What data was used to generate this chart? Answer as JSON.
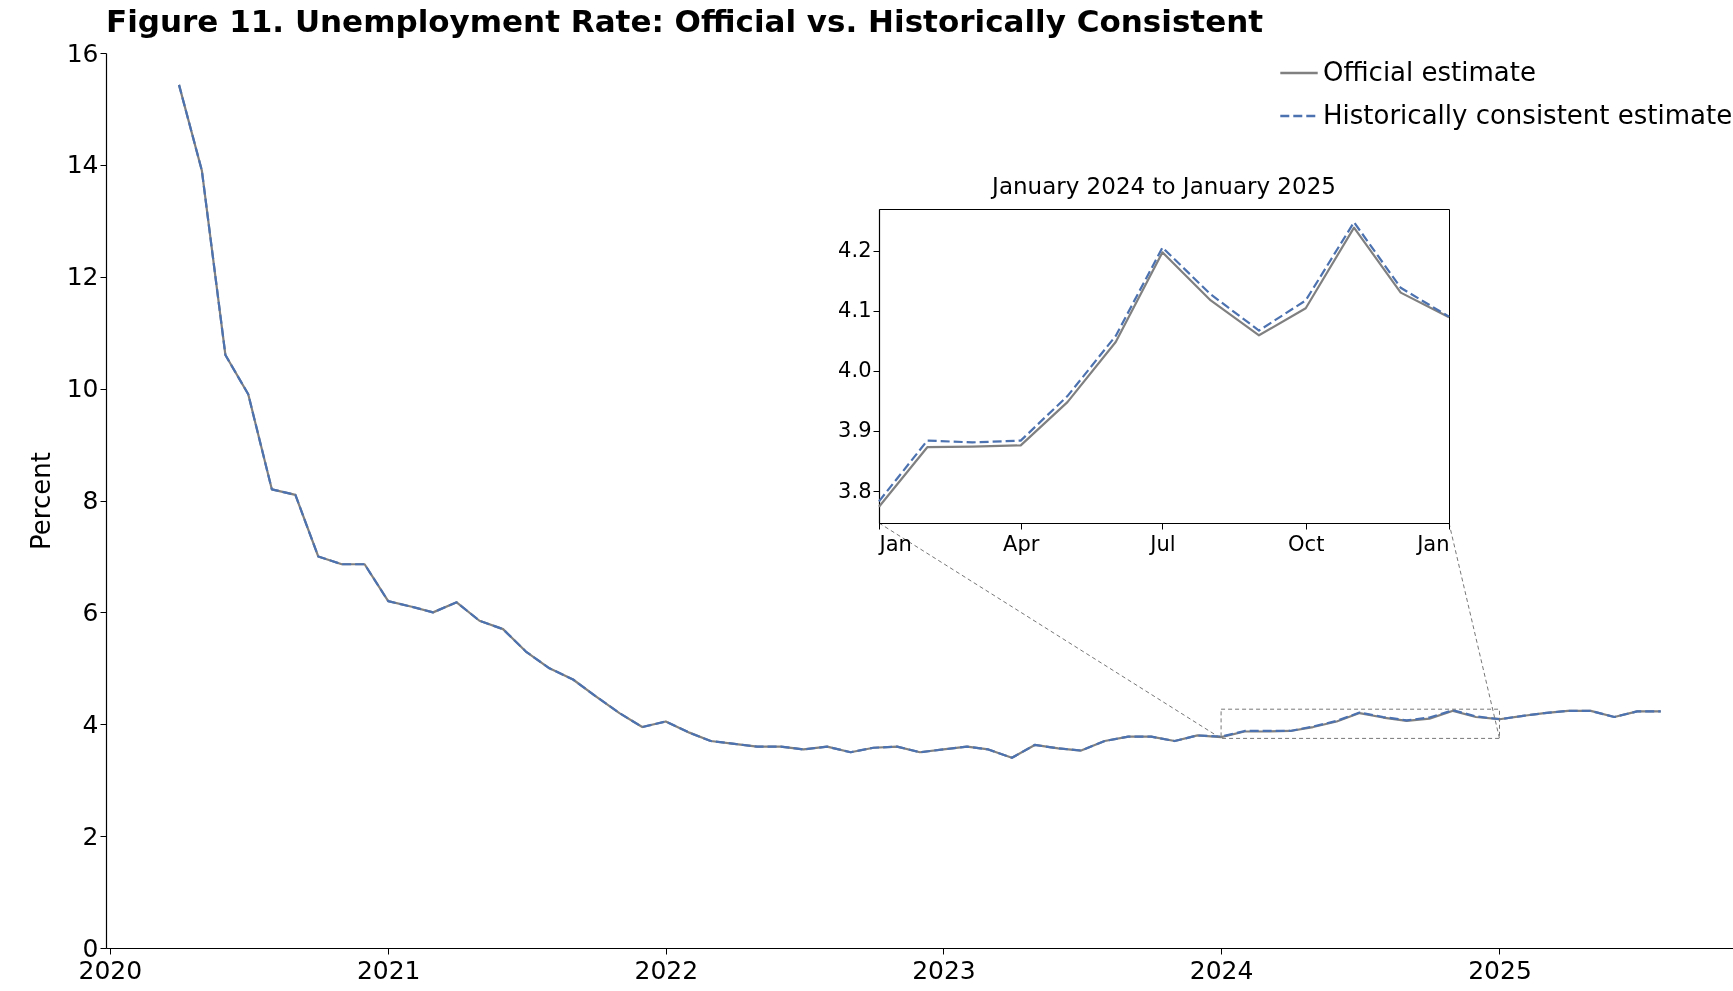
{
  "chart_data": [
    {
      "type": "line",
      "title": "Figure 11. Unemployment Rate: Official vs. Historically Consistent",
      "ylabel": "Percent",
      "x": [
        "2020-04",
        "2020-05",
        "2020-06",
        "2020-07",
        "2020-08",
        "2020-09",
        "2020-10",
        "2020-11",
        "2020-12",
        "2021-01",
        "2021-02",
        "2021-03",
        "2021-04",
        "2021-05",
        "2021-06",
        "2021-07",
        "2021-08",
        "2021-09",
        "2021-10",
        "2021-11",
        "2021-12",
        "2022-01",
        "2022-02",
        "2022-03",
        "2022-04",
        "2022-05",
        "2022-06",
        "2022-07",
        "2022-08",
        "2022-09",
        "2022-10",
        "2022-11",
        "2022-12",
        "2023-01",
        "2023-02",
        "2023-03",
        "2023-04",
        "2023-05",
        "2023-06",
        "2023-07",
        "2023-08",
        "2023-09",
        "2023-10",
        "2023-11",
        "2023-12",
        "2024-01",
        "2024-02",
        "2024-03",
        "2024-04",
        "2024-05",
        "2024-06",
        "2024-07",
        "2024-08",
        "2024-09",
        "2024-10",
        "2024-11",
        "2024-12",
        "2025-01",
        "2025-02",
        "2025-03",
        "2025-04",
        "2025-05",
        "2025-06",
        "2025-07",
        "2025-08"
      ],
      "series": [
        {
          "name": "Official estimate",
          "color": "#808080",
          "line_style": "solid",
          "values": [
            15.43,
            13.9,
            10.6,
            9.9,
            8.2,
            8.1,
            7.0,
            6.86,
            6.86,
            6.2,
            6.1,
            6.0,
            6.18,
            5.85,
            5.7,
            5.3,
            5.0,
            4.8,
            4.5,
            4.2,
            3.95,
            4.05,
            3.85,
            3.7,
            3.65,
            3.6,
            3.6,
            3.55,
            3.6,
            3.5,
            3.58,
            3.6,
            3.5,
            3.55,
            3.6,
            3.55,
            3.4,
            3.63,
            3.57,
            3.53,
            3.7,
            3.78,
            3.78,
            3.7,
            3.8,
            3.77,
            3.87,
            3.87,
            3.88,
            3.95,
            4.05,
            4.2,
            4.12,
            4.06,
            4.1,
            4.24,
            4.13,
            4.09,
            4.15,
            4.2,
            4.24,
            4.24,
            4.13,
            4.23,
            4.23
          ]
        },
        {
          "name": "Historically consistent estimate",
          "color": "#4c72b0",
          "line_style": "dashed",
          "values": [
            15.43,
            13.9,
            10.6,
            9.9,
            8.2,
            8.1,
            7.0,
            6.86,
            6.86,
            6.2,
            6.1,
            6.0,
            6.18,
            5.85,
            5.7,
            5.3,
            5.0,
            4.8,
            4.5,
            4.2,
            3.95,
            4.05,
            3.85,
            3.7,
            3.65,
            3.6,
            3.6,
            3.55,
            3.6,
            3.5,
            3.58,
            3.6,
            3.5,
            3.55,
            3.6,
            3.55,
            3.4,
            3.63,
            3.57,
            3.53,
            3.7,
            3.78,
            3.78,
            3.7,
            3.8,
            3.78,
            3.88,
            3.88,
            3.88,
            3.96,
            4.06,
            4.21,
            4.13,
            4.07,
            4.12,
            4.25,
            4.14,
            4.09,
            4.15,
            4.2,
            4.24,
            4.24,
            4.13,
            4.23,
            4.23
          ]
        }
      ],
      "xlim": [
        "2019-12-27",
        "2025-11-04"
      ],
      "xticks": [
        "2020",
        "2021",
        "2022",
        "2023",
        "2024",
        "2025"
      ],
      "ylim": [
        0,
        16
      ],
      "yticks": [
        0,
        2,
        4,
        6,
        8,
        10,
        12,
        14,
        16
      ],
      "grid": false,
      "legend": "top right"
    },
    {
      "type": "line",
      "title": "January 2024 to January 2025",
      "x": [
        "2024-01",
        "2024-02",
        "2024-03",
        "2024-04",
        "2024-05",
        "2024-06",
        "2024-07",
        "2024-08",
        "2024-09",
        "2024-10",
        "2024-11",
        "2024-12",
        "2025-01"
      ],
      "series": [
        {
          "color": "#808080",
          "line_style": "solid",
          "values": [
            3.774,
            3.873,
            3.874,
            3.876,
            3.948,
            4.048,
            4.197,
            4.117,
            4.059,
            4.104,
            4.238,
            4.13,
            4.089
          ]
        },
        {
          "color": "#4c72b0",
          "line_style": "dashed",
          "values": [
            3.783,
            3.884,
            3.881,
            3.884,
            3.958,
            4.058,
            4.205,
            4.127,
            4.067,
            4.117,
            4.247,
            4.138,
            4.09
          ]
        }
      ],
      "xlim": [
        "2024-01",
        "2025-01"
      ],
      "xticks": [
        {
          "value": "2024-01",
          "label": "Jan"
        },
        {
          "value": "2024-04",
          "label": "Apr"
        },
        {
          "value": "2024-07",
          "label": "Jul"
        },
        {
          "value": "2024-10",
          "label": "Oct"
        },
        {
          "value": "2025-01",
          "label": "Jan"
        }
      ],
      "ylim": [
        3.747,
        4.269
      ],
      "yticks": [
        3.8,
        3.9,
        {
          "value": 4,
          "label": "4.0"
        },
        4.1,
        4.2
      ],
      "grid": false
    }
  ]
}
